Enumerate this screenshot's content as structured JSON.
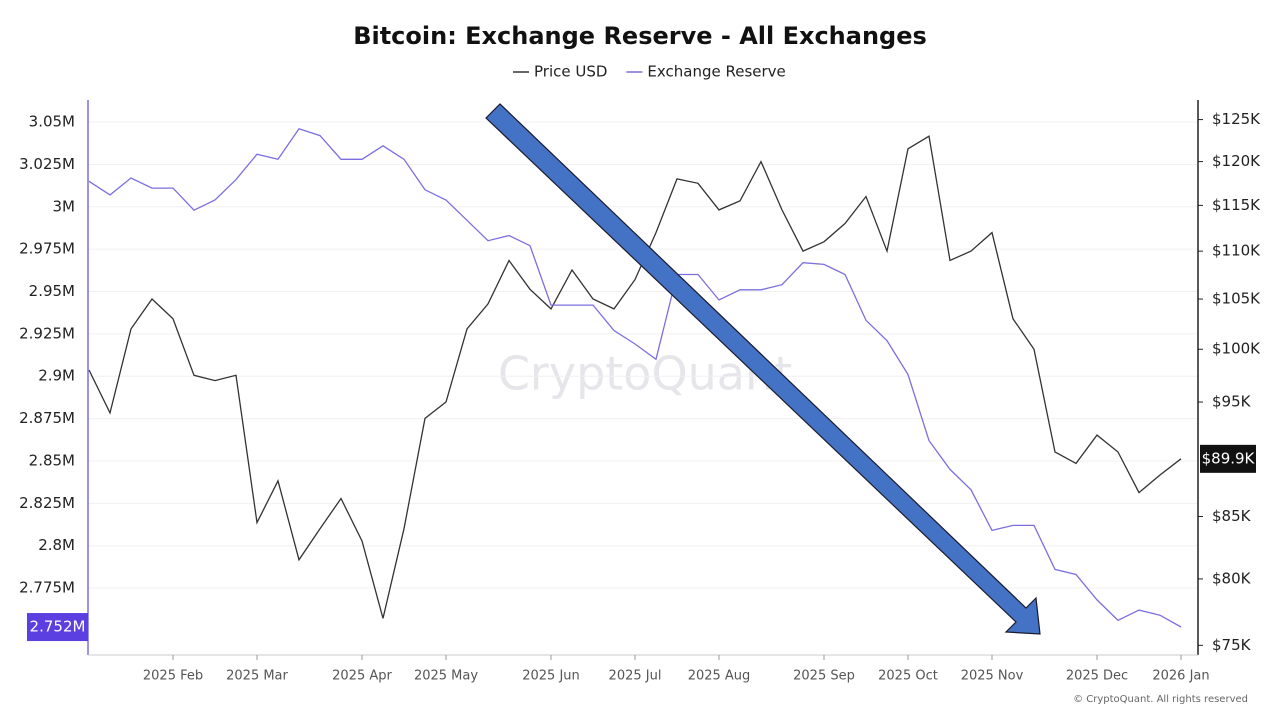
{
  "chart_data": {
    "type": "line",
    "title": "Bitcoin: Exchange Reserve - All Exchanges",
    "watermark": "CryptoQuant",
    "credit": "© CryptoQuant. All rights reserved",
    "categories": [
      null,
      null,
      null,
      null,
      "2025 Feb",
      null,
      null,
      null,
      "2025 Mar",
      null,
      null,
      null,
      null,
      "2025 Apr",
      null,
      null,
      null,
      "2025 May",
      null,
      null,
      null,
      null,
      "2025 Jun",
      null,
      null,
      null,
      "2025 Jul",
      null,
      null,
      null,
      "2025 Aug",
      null,
      null,
      null,
      null,
      "2025 Sep",
      null,
      null,
      null,
      "2025 Oct",
      null,
      null,
      null,
      "2025 Nov",
      null,
      null,
      null,
      null,
      "2025 Dec",
      null,
      null,
      null,
      "2026 Jan"
    ],
    "series": [
      {
        "name": "Price USD",
        "color": "#333333",
        "axis": "y2",
        "values": [
          98000,
          94000,
          102000,
          105000,
          103000,
          97500,
          97000,
          97500,
          84500,
          88000,
          81500,
          84000,
          86500,
          83000,
          77000,
          84000,
          93500,
          95000,
          102000,
          104500,
          109000,
          106000,
          104000,
          108000,
          105000,
          104000,
          107000,
          112000,
          118000,
          117500,
          114500,
          115500,
          120000,
          114500,
          110000,
          111000,
          113000,
          116000,
          110000,
          121500,
          123000,
          109000,
          110000,
          112000,
          103000,
          100000,
          90500,
          89500,
          92000,
          90500,
          87000,
          88500,
          89900
        ],
        "end_label": {
          "value": 89900,
          "label": "$89.9K"
        }
      },
      {
        "name": "Exchange Reserve",
        "color": "#7b6fe0",
        "values": [
          3015000,
          3007000,
          3017000,
          3011000,
          3011000,
          2998000,
          3004000,
          3016000,
          3031000,
          3028000,
          3046000,
          3042000,
          3028000,
          3028000,
          3036000,
          3028000,
          3010000,
          3004000,
          2992000,
          2980000,
          2983000,
          2977000,
          2942000,
          2942000,
          2942000,
          2927000,
          2919000,
          2910000,
          2960000,
          2960000,
          2945000,
          2951000,
          2951000,
          2954000,
          2967000,
          2966000,
          2960000,
          2933000,
          2921000,
          2901000,
          2862000,
          2845000,
          2833000,
          2809000,
          2812000,
          2812000,
          2786000,
          2783000,
          2768000,
          2756000,
          2762000,
          2759000,
          2752000
        ],
        "end_label": {
          "value": 2752000,
          "label": "2.752M"
        }
      }
    ],
    "ylim": [
      2735500,
      3063000
    ],
    "yticks": [
      {
        "value": 2775000,
        "label": "2.775M"
      },
      {
        "value": 2800000,
        "label": "2.8M"
      },
      {
        "value": 2825000,
        "label": "2.825M"
      },
      {
        "value": 2850000,
        "label": "2.85M"
      },
      {
        "value": 2875000,
        "label": "2.875M"
      },
      {
        "value": 2900000,
        "label": "2.9M"
      },
      {
        "value": 2925000,
        "label": "2.925M"
      },
      {
        "value": 2950000,
        "label": "2.95M"
      },
      {
        "value": 2975000,
        "label": "2.975M"
      },
      {
        "value": 3000000,
        "label": "3M"
      },
      {
        "value": 3025000,
        "label": "3.025M"
      },
      {
        "value": 3050000,
        "label": "3.05M"
      }
    ],
    "y2lim": [
      74300,
      127400
    ],
    "y2log": true,
    "y2ticks": [
      {
        "value": 75000,
        "label": "$75K"
      },
      {
        "value": 80000,
        "label": "$80K"
      },
      {
        "value": 85000,
        "label": "$85K"
      },
      {
        "value": 95000,
        "label": "$95K"
      },
      {
        "value": 100000,
        "label": "$100K"
      },
      {
        "value": 105000,
        "label": "$105K"
      },
      {
        "value": 110000,
        "label": "$110K"
      },
      {
        "value": 115000,
        "label": "$115K"
      },
      {
        "value": 120000,
        "label": "$120K"
      },
      {
        "value": 125000,
        "label": "$125K"
      }
    ],
    "grid": true
  }
}
